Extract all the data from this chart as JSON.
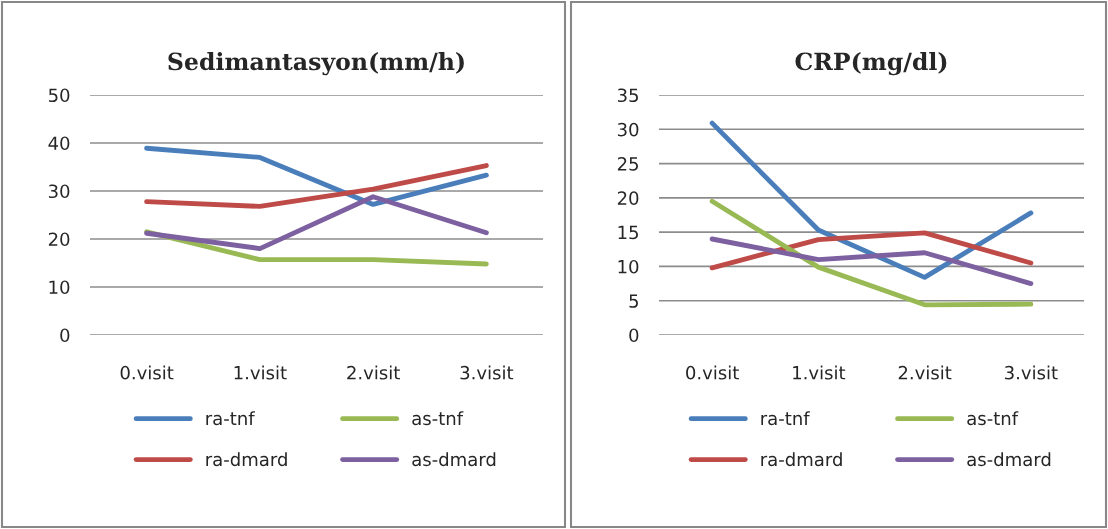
{
  "chart_data": [
    {
      "type": "line",
      "title": "Sedimantasyon(mm/h)",
      "categories": [
        "0.visit",
        "1.visit",
        "2.visit",
        "3.visit"
      ],
      "series": [
        {
          "name": "ra-tnf",
          "color": "#4a7ebb",
          "values": [
            38.9,
            37.0,
            27.2,
            33.3
          ]
        },
        {
          "name": "ra-dmard",
          "color": "#be4b48",
          "values": [
            27.8,
            26.8,
            30.4,
            35.3
          ]
        },
        {
          "name": "as-tnf",
          "color": "#98b954",
          "values": [
            21.5,
            15.7,
            15.7,
            14.8
          ]
        },
        {
          "name": "as-dmard",
          "color": "#7d60a0",
          "values": [
            21.2,
            18.0,
            28.8,
            21.3
          ]
        }
      ],
      "ylim": [
        0,
        50
      ],
      "yticks": [
        0,
        10,
        20,
        30,
        40,
        50
      ],
      "grid": "y",
      "legend": "bottom",
      "marker": "none",
      "line_style": "solid"
    },
    {
      "type": "line",
      "title": "CRP(mg/dl)",
      "categories": [
        "0.visit",
        "1.visit",
        "2.visit",
        "3.visit"
      ],
      "series": [
        {
          "name": "ra-tnf",
          "color": "#4a7ebb",
          "values": [
            30.9,
            15.3,
            8.4,
            17.8
          ]
        },
        {
          "name": "ra-dmard",
          "color": "#be4b48",
          "values": [
            9.8,
            13.9,
            14.9,
            10.5
          ]
        },
        {
          "name": "as-tnf",
          "color": "#98b954",
          "values": [
            19.5,
            9.9,
            4.4,
            4.5
          ]
        },
        {
          "name": "as-dmard",
          "color": "#7d60a0",
          "values": [
            14.0,
            11.0,
            12.0,
            7.5
          ]
        }
      ],
      "ylim": [
        0,
        35
      ],
      "yticks": [
        0,
        5,
        10,
        15,
        20,
        25,
        30,
        35
      ],
      "grid": "y",
      "legend": "bottom",
      "marker": "none",
      "line_style": "solid"
    }
  ]
}
